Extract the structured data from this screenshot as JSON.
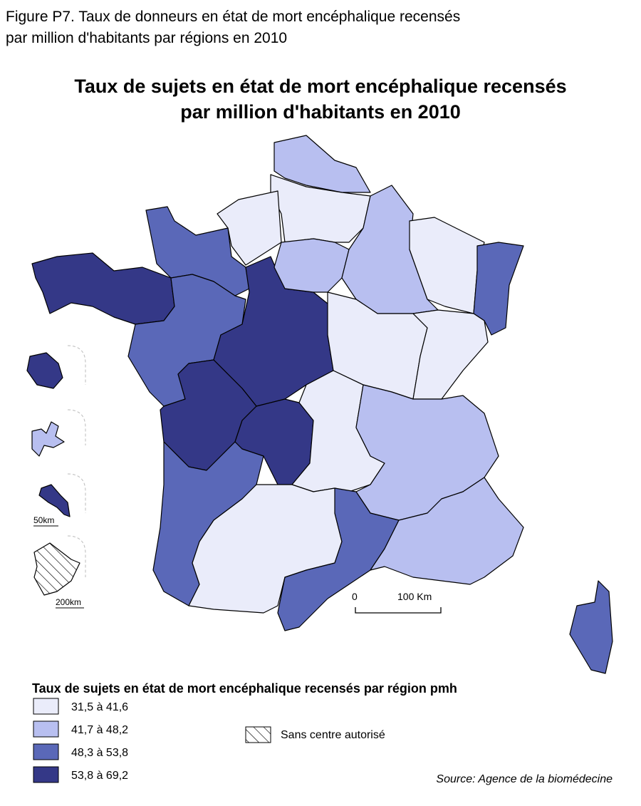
{
  "figure_title": [
    "Figure P7. Taux de donneurs en état de mort encéphalique recensés",
    "par million d'habitants par régions en 2010"
  ],
  "map": {
    "title": [
      "Taux de sujets en état de mort encéphalique recensés",
      "par million d'habitants en 2010"
    ],
    "scale": {
      "start": "0",
      "end": "100 Km"
    },
    "inset_scales": [
      "50km",
      "200km"
    ]
  },
  "legend": {
    "title": "Taux de sujets en état de mort encéphalique recensés par région pmh",
    "items": [
      {
        "label": "31,5 à 41,6",
        "color": "#eaecfa"
      },
      {
        "label": "41,7 à 48,2",
        "color": "#b8bff0"
      },
      {
        "label": "48,3 à 53,8",
        "color": "#5a68b8"
      },
      {
        "label": "53,8 à 69,2",
        "color": "#343887"
      }
    ],
    "hatched": "Sans centre autorisé"
  },
  "source": "Source: Agence de la biomédecine"
}
